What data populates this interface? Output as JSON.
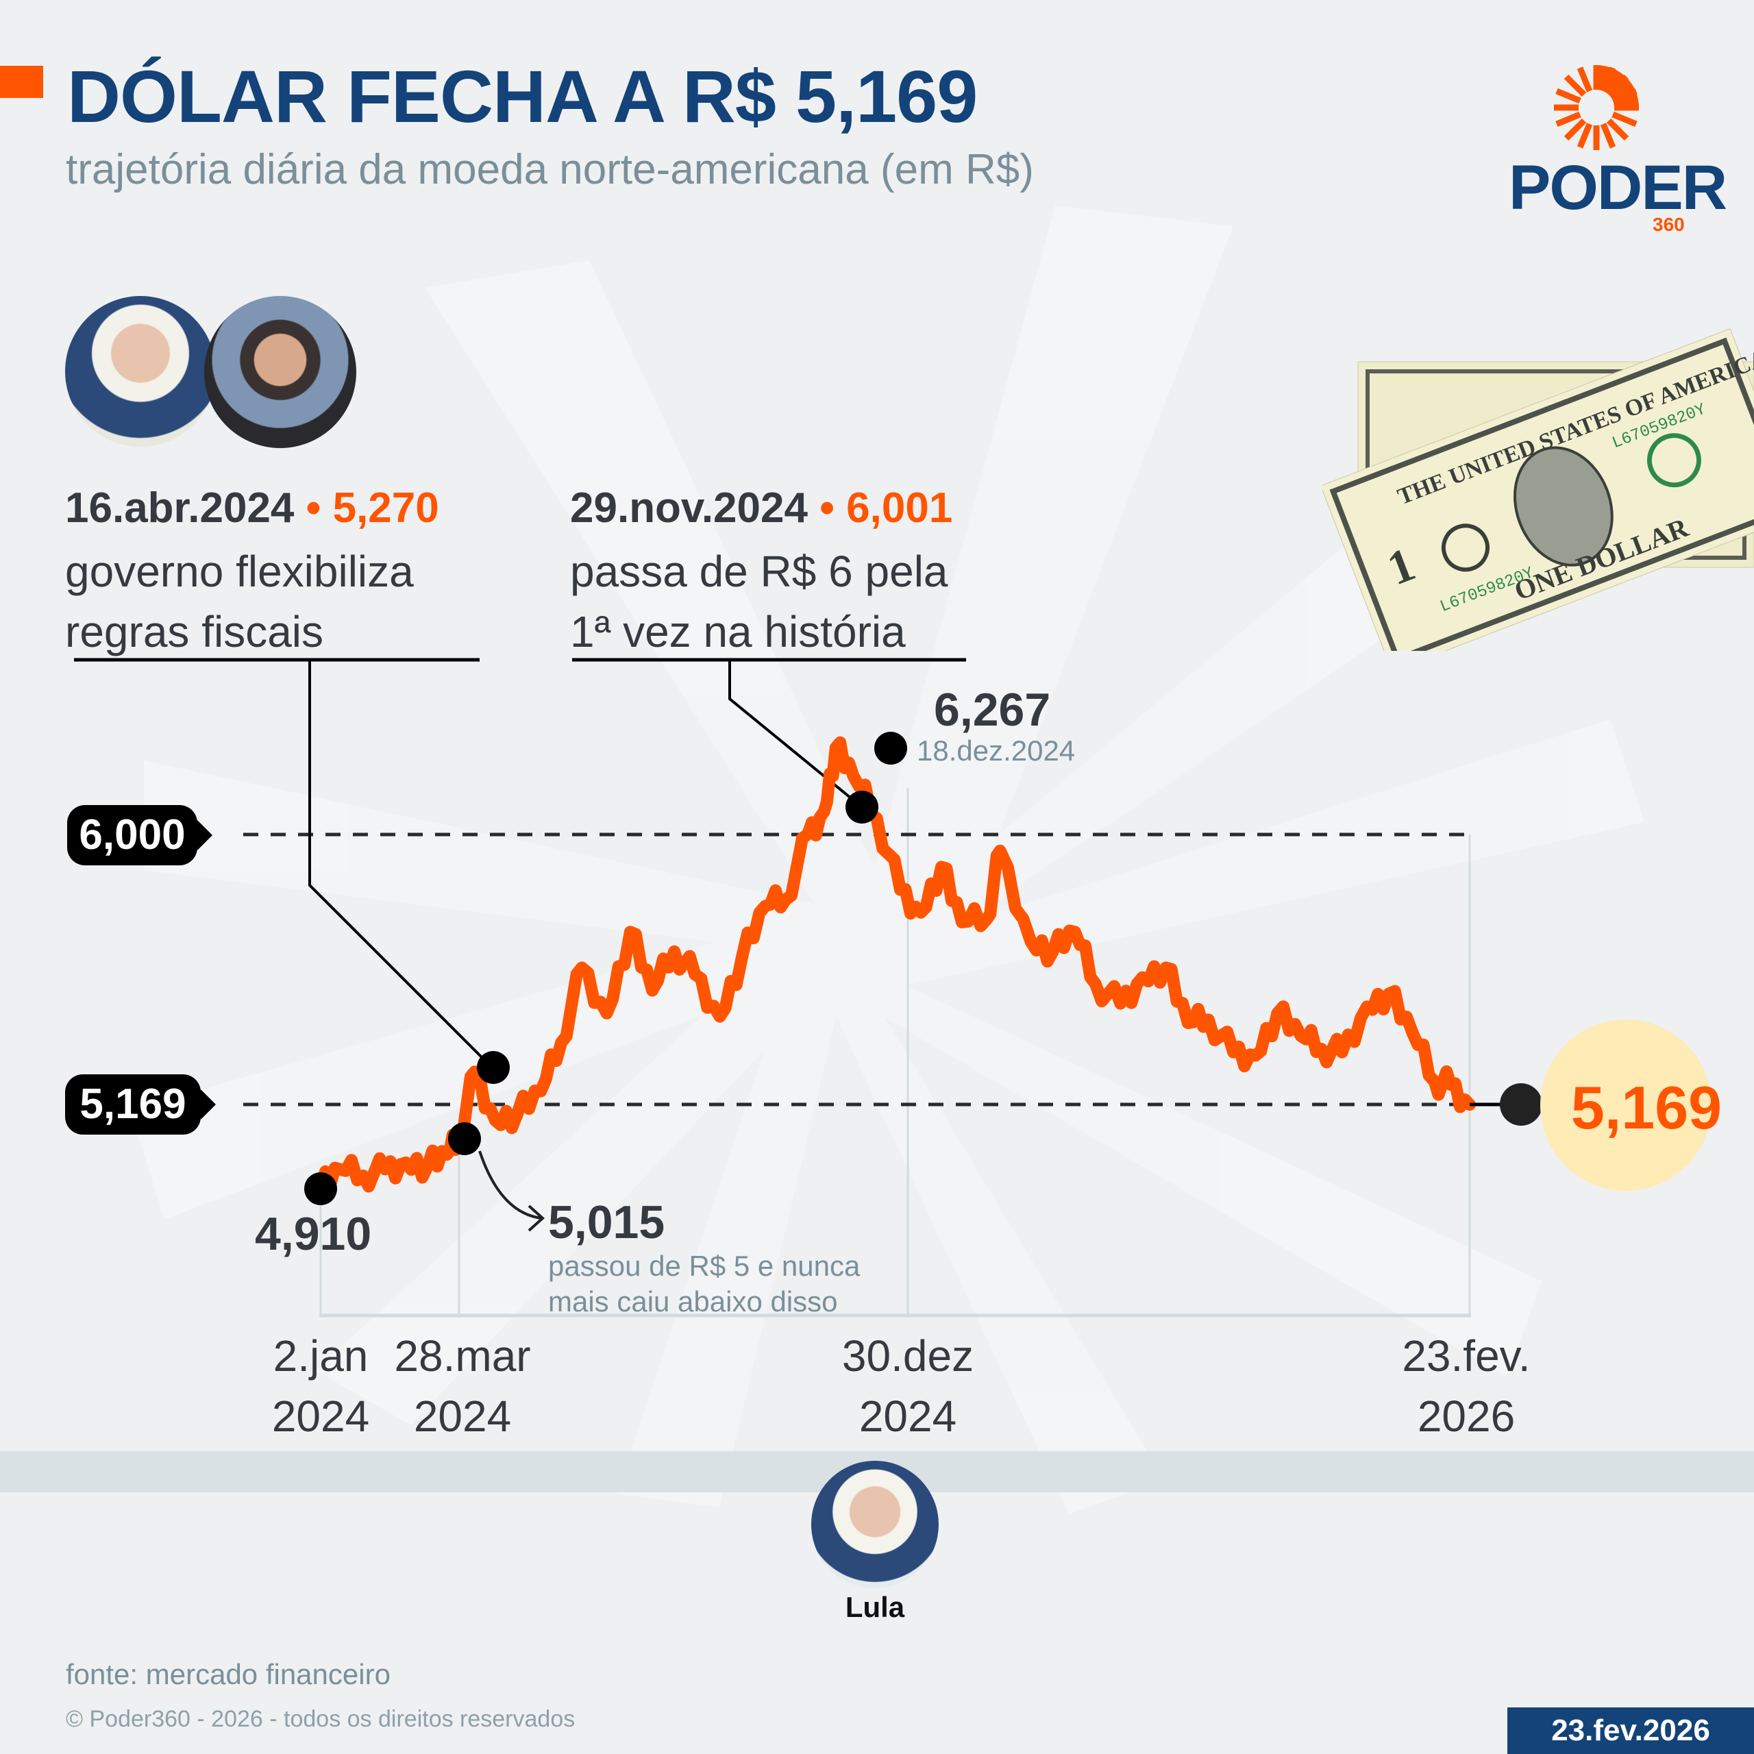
{
  "header": {
    "title": "DÓLAR FECHA A R$ 5,169",
    "subtitle": "trajetória diária da moeda norte-americana (em R$)"
  },
  "logo": {
    "word": "PODER",
    "number": "360",
    "brand_orange": "#ff5500",
    "brand_blue": "#134379"
  },
  "annotations": [
    {
      "date": "16.abr.2024",
      "separator": "•",
      "value": "5,270",
      "lines": [
        "governo flexibiliza",
        "regras fiscais"
      ]
    },
    {
      "date": "29.nov.2024",
      "separator": "•",
      "value": "6,001",
      "lines": [
        "passa de R$ 6 pela",
        "1ª vez na história"
      ]
    }
  ],
  "reference_tags": {
    "upper": "6,000",
    "lower": "5,169"
  },
  "point_labels": {
    "start": {
      "value": "4,910"
    },
    "peak": {
      "value": "6,267",
      "date": "18.dez.2024"
    },
    "above5": {
      "value": "5,015",
      "note_lines": [
        "passou de R$ 5 e nunca",
        "mais caiu abaixo disso"
      ]
    },
    "final": {
      "value": "5,169"
    }
  },
  "x_labels": [
    {
      "line1": "2.jan",
      "line2": "2024"
    },
    {
      "line1": "28.mar",
      "line2": "2024"
    },
    {
      "line1": "30.dez",
      "line2": "2024"
    },
    {
      "line1": "23.fev.",
      "line2": "2026"
    }
  ],
  "president": {
    "name": "Lula"
  },
  "footer": {
    "source": "fonte: mercado financeiro",
    "copyright": "© Poder360 - 2026 - todos os direitos reservados",
    "date": "23.fev.2026"
  },
  "colors": {
    "line": "#ff5500",
    "title": "#134379",
    "text": "#353a40",
    "muted": "#7a8f99",
    "final_bg": "#feebb6",
    "band": "#d9e1e5"
  },
  "chart_data": {
    "type": "line",
    "title": "DÓLAR FECHA A R$ 5,169",
    "subtitle": "trajetória diária da moeda norte-americana (em R$)",
    "xlabel": "",
    "ylabel": "R$",
    "ylim": [
      4.85,
      6.3
    ],
    "grid": false,
    "reference_lines": [
      6.0,
      5.169
    ],
    "x_ticks": [
      "2.jan 2024",
      "28.mar 2024",
      "30.dez 2024",
      "23.fev. 2026"
    ],
    "highlights": [
      {
        "date": "2.jan.2024",
        "value": 4.91
      },
      {
        "date": "28.mar.2024",
        "value": 5.015,
        "note": "passou de R$ 5 e nunca mais caiu abaixo disso"
      },
      {
        "date": "16.abr.2024",
        "value": 5.27,
        "note": "governo flexibiliza regras fiscais"
      },
      {
        "date": "29.nov.2024",
        "value": 6.001,
        "note": "passa de R$ 6 pela 1ª vez na história"
      },
      {
        "date": "18.dez.2024",
        "value": 6.267
      },
      {
        "date": "23.fev.2026",
        "value": 5.169
      }
    ],
    "series": [
      {
        "name": "Dólar (R$)",
        "x": [
          "2024-01-02",
          "2024-01-15",
          "2024-01-31",
          "2024-02-15",
          "2024-02-29",
          "2024-03-15",
          "2024-03-28",
          "2024-04-05",
          "2024-04-16",
          "2024-04-30",
          "2024-05-15",
          "2024-05-31",
          "2024-06-14",
          "2024-06-28",
          "2024-07-15",
          "2024-07-31",
          "2024-08-15",
          "2024-08-30",
          "2024-09-13",
          "2024-09-30",
          "2024-10-15",
          "2024-10-31",
          "2024-11-14",
          "2024-11-29",
          "2024-12-10",
          "2024-12-18",
          "2024-12-30",
          "2025-01-15",
          "2025-01-31",
          "2025-02-14",
          "2025-02-28",
          "2025-03-14",
          "2025-03-31",
          "2025-04-09",
          "2025-04-30",
          "2025-05-15",
          "2025-05-30",
          "2025-06-13",
          "2025-06-30",
          "2025-07-15",
          "2025-07-31",
          "2025-08-15",
          "2025-08-29",
          "2025-09-15",
          "2025-09-30",
          "2025-10-15",
          "2025-10-31",
          "2025-11-14",
          "2025-11-28",
          "2025-12-15",
          "2025-12-30",
          "2026-01-15",
          "2026-01-30",
          "2026-02-10",
          "2026-02-23"
        ],
        "values": [
          4.91,
          4.97,
          4.95,
          4.97,
          4.99,
          4.98,
          5.015,
          5.06,
          5.27,
          5.12,
          5.14,
          5.21,
          5.36,
          5.59,
          5.45,
          5.7,
          5.52,
          5.64,
          5.57,
          5.44,
          5.62,
          5.78,
          5.8,
          6.001,
          6.07,
          6.267,
          6.18,
          6.05,
          5.83,
          5.76,
          5.9,
          5.73,
          5.74,
          5.95,
          5.67,
          5.64,
          5.7,
          5.54,
          5.48,
          5.56,
          5.59,
          5.42,
          5.43,
          5.33,
          5.32,
          5.45,
          5.38,
          5.34,
          5.33,
          5.47,
          5.51,
          5.39,
          5.24,
          5.23,
          5.169
        ]
      }
    ]
  }
}
